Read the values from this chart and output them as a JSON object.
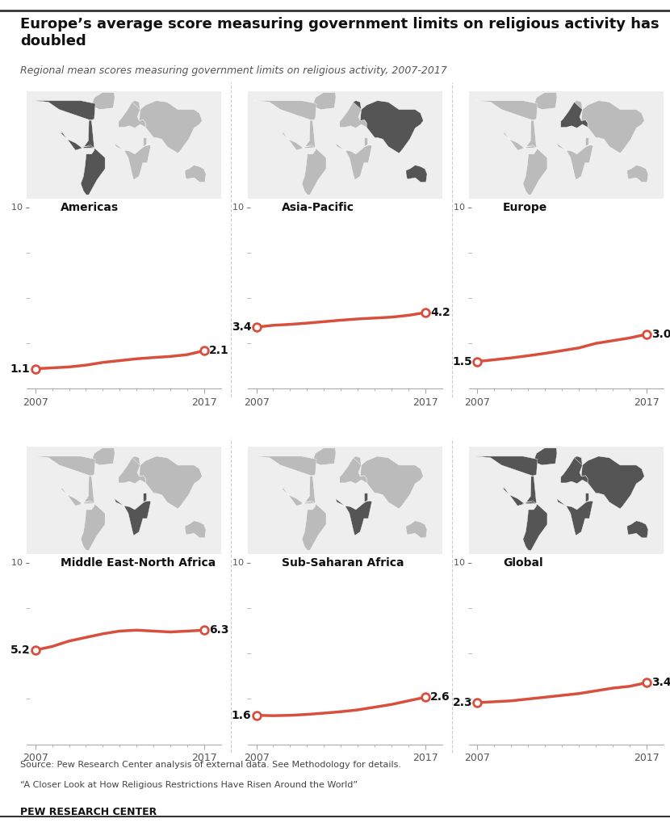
{
  "title": "Europe’s average score measuring government limits on religious activity has\ndoubled",
  "subtitle": "Regional mean scores measuring government limits on religious activity, 2007-2017",
  "source_line1": "Source: Pew Research Center analysis of external data. See Methodology for details.",
  "source_line2": "“A Closer Look at How Religious Restrictions Have Risen Around the World”",
  "source_line3": "PEW RESEARCH CENTER",
  "regions": [
    "Americas",
    "Asia-Pacific",
    "Europe",
    "Middle East-North Africa",
    "Sub-Saharan Africa",
    "Global"
  ],
  "start_values": [
    1.1,
    3.4,
    1.5,
    5.2,
    1.6,
    2.3
  ],
  "end_values": [
    2.1,
    4.2,
    3.0,
    6.3,
    2.6,
    3.4
  ],
  "series": {
    "Americas": [
      1.1,
      1.15,
      1.2,
      1.3,
      1.45,
      1.55,
      1.65,
      1.72,
      1.78,
      1.88,
      2.1
    ],
    "Asia-Pacific": [
      3.4,
      3.5,
      3.55,
      3.62,
      3.7,
      3.78,
      3.85,
      3.9,
      3.95,
      4.05,
      4.2
    ],
    "Europe": [
      1.5,
      1.6,
      1.7,
      1.82,
      1.95,
      2.1,
      2.25,
      2.5,
      2.65,
      2.8,
      3.0
    ],
    "Middle East-North Africa": [
      5.2,
      5.4,
      5.7,
      5.9,
      6.1,
      6.25,
      6.3,
      6.25,
      6.2,
      6.25,
      6.3
    ],
    "Sub-Saharan Africa": [
      1.6,
      1.58,
      1.6,
      1.65,
      1.72,
      1.8,
      1.9,
      2.05,
      2.2,
      2.4,
      2.6
    ],
    "Global": [
      2.3,
      2.35,
      2.4,
      2.5,
      2.6,
      2.7,
      2.8,
      2.95,
      3.1,
      3.2,
      3.4
    ]
  },
  "years": [
    2007,
    2008,
    2009,
    2010,
    2011,
    2012,
    2013,
    2014,
    2015,
    2016,
    2017
  ],
  "line_color": "#d94f3d",
  "bg_color": "#ffffff",
  "map_colors": {
    "Americas": {
      "highlight": "#555555",
      "base": "#cccccc"
    },
    "Asia-Pacific": {
      "highlight": "#555555",
      "base": "#cccccc"
    },
    "Europe": {
      "highlight": "#555555",
      "base": "#cccccc"
    },
    "Middle East-North Africa": {
      "highlight": "#555555",
      "base": "#cccccc"
    },
    "Sub-Saharan Africa": {
      "highlight": "#555555",
      "base": "#cccccc"
    },
    "Global": {
      "highlight": "#555555",
      "base": "#cccccc"
    }
  },
  "ylim": [
    0,
    10
  ],
  "yticks_major": 10,
  "grid_color": "#cccccc"
}
